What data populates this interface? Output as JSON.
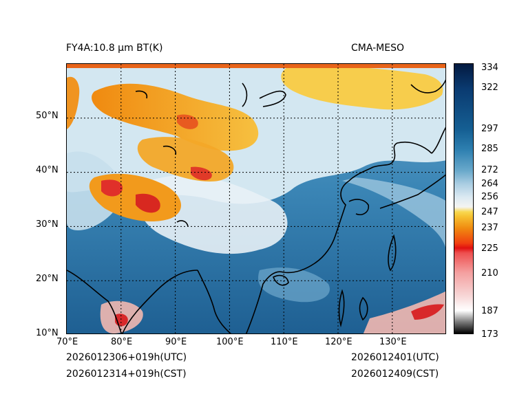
{
  "title_left": "FY4A:10.8 µm BT(K)",
  "title_right": "CMA-MESO",
  "footer": {
    "utc_init": "2026012306+019h(UTC)",
    "cst_init": "2026012314+019h(CST)",
    "utc_valid": "2026012401(UTC)",
    "cst_valid": "2026012409(CST)"
  },
  "lon_labels": [
    "70°E",
    "80°E",
    "90°E",
    "100°E",
    "110°E",
    "120°E",
    "130°E"
  ],
  "lat_labels": [
    "10°N",
    "20°N",
    "30°N",
    "40°N",
    "50°N"
  ],
  "colorbar": {
    "labels": [
      "334",
      "322",
      "297",
      "285",
      "272",
      "264",
      "256",
      "247",
      "237",
      "225",
      "210",
      "187",
      "173"
    ],
    "min": 173,
    "max": 337
  },
  "colors": {
    "ocean_deep": "#1e5f92",
    "ocean_mid": "#3b86b6",
    "cloud_light": "#cfe3ee",
    "cold_cloud": "#f0a020",
    "very_cold": "#e02010",
    "coast": "#000000"
  }
}
